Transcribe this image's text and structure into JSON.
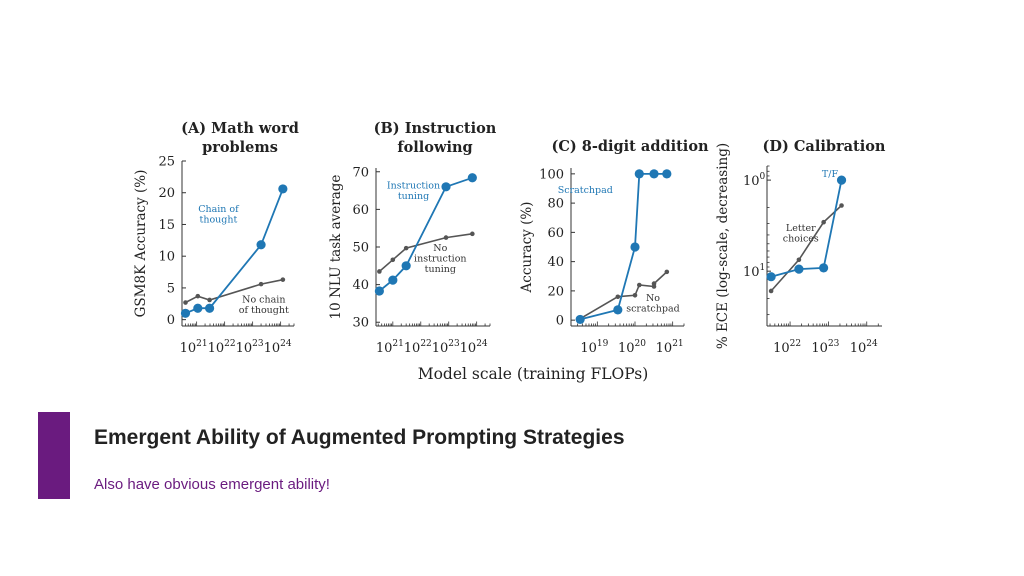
{
  "slide": {
    "title": "Emergent Ability of Augmented Prompting Strategies",
    "subtitle": "Also have obvious emergent ability!",
    "accent_color": "#6a1b7f"
  },
  "shared_xlabel": "Model scale (training FLOPs)",
  "chart_data": [
    {
      "type": "line",
      "title_lines": [
        "(A) Math word",
        "problems"
      ],
      "ylabel": "GSM8K Accuracy (%)",
      "x_scale": "log",
      "xlim": [
        3e+20,
        3e+24
      ],
      "xticks": [
        {
          "v": 1e+21,
          "base": "10",
          "exp": "21"
        },
        {
          "v": 1e+22,
          "base": "10",
          "exp": "22"
        },
        {
          "v": 1e+23,
          "base": "10",
          "exp": "23"
        },
        {
          "v": 1e+24,
          "base": "10",
          "exp": "24"
        }
      ],
      "ylim": [
        -1,
        25
      ],
      "yticks": [
        {
          "v": 0,
          "label": "0"
        },
        {
          "v": 5,
          "label": "5"
        },
        {
          "v": 10,
          "label": "10"
        },
        {
          "v": 15,
          "label": "15"
        },
        {
          "v": 20,
          "label": "20"
        },
        {
          "v": 25,
          "label": "25"
        }
      ],
      "series": [
        {
          "name": "Chain of thought",
          "label_lines": [
            "Chain of",
            "thought"
          ],
          "label_at": [
            6e+21,
            17
          ],
          "color": "#1f77b4",
          "marker": "large",
          "points": [
            [
              4e+20,
              1
            ],
            [
              1.1e+21,
              1.8
            ],
            [
              2.9e+21,
              1.8
            ],
            [
              2e+23,
              11.8
            ],
            [
              1.2e+24,
              20.6
            ]
          ]
        },
        {
          "name": "No chain of thought",
          "label_lines": [
            "No chain",
            "of thought"
          ],
          "label_at": [
            2.5e+23,
            2.7
          ],
          "color": "#555555",
          "marker": "small",
          "points": [
            [
              4e+20,
              2.7
            ],
            [
              1.1e+21,
              3.7
            ],
            [
              2.9e+21,
              3.1
            ],
            [
              2e+23,
              5.6
            ],
            [
              1.2e+24,
              6.3
            ]
          ]
        }
      ]
    },
    {
      "type": "line",
      "title_lines": [
        "(B) Instruction",
        "following"
      ],
      "ylabel": "10 NLU task average",
      "x_scale": "log",
      "xlim": [
        2.5e+20,
        3e+24
      ],
      "xticks": [
        {
          "v": 1e+21,
          "base": "10",
          "exp": "21"
        },
        {
          "v": 1e+22,
          "base": "10",
          "exp": "22"
        },
        {
          "v": 1e+23,
          "base": "10",
          "exp": "23"
        },
        {
          "v": 1e+24,
          "base": "10",
          "exp": "24"
        }
      ],
      "ylim": [
        29,
        71
      ],
      "yticks": [
        {
          "v": 30,
          "label": "30"
        },
        {
          "v": 40,
          "label": "40"
        },
        {
          "v": 50,
          "label": "50"
        },
        {
          "v": 60,
          "label": "60"
        },
        {
          "v": 70,
          "label": "70"
        }
      ],
      "series": [
        {
          "name": "Instruction tuning",
          "label_lines": [
            "Instruction",
            "tuning"
          ],
          "label_at": [
            5.5e+21,
            65.5
          ],
          "color": "#1f77b4",
          "marker": "large",
          "points": [
            [
              3.3e+20,
              38.3
            ],
            [
              1e+21,
              41.2
            ],
            [
              3e+21,
              45
            ],
            [
              8e+22,
              66
            ],
            [
              7e+23,
              68.4
            ]
          ]
        },
        {
          "name": "No instruction tuning",
          "label_lines": [
            "No",
            "instruction",
            "tuning"
          ],
          "label_at": [
            5e+22,
            49
          ],
          "color": "#555555",
          "marker": "small",
          "points": [
            [
              3.3e+20,
              43.5
            ],
            [
              1e+21,
              46.6
            ],
            [
              3e+21,
              49.7
            ],
            [
              8e+22,
              52.5
            ],
            [
              7e+23,
              53.5
            ]
          ]
        }
      ]
    },
    {
      "type": "line",
      "title_lines": [
        "(C) 8-digit addition"
      ],
      "ylabel": "Accuracy (%)",
      "x_scale": "log",
      "xlim": [
        2e+18,
        2e+21
      ],
      "xticks": [
        {
          "v": 1e+19,
          "base": "10",
          "exp": "19"
        },
        {
          "v": 1e+20,
          "base": "10",
          "exp": "20"
        },
        {
          "v": 1e+21,
          "base": "10",
          "exp": "21"
        }
      ],
      "ylim": [
        -4,
        104
      ],
      "yticks": [
        {
          "v": 0,
          "label": "0"
        },
        {
          "v": 20,
          "label": "20"
        },
        {
          "v": 40,
          "label": "40"
        },
        {
          "v": 60,
          "label": "60"
        },
        {
          "v": 80,
          "label": "80"
        },
        {
          "v": 100,
          "label": "100"
        }
      ],
      "series": [
        {
          "name": "Scratchpad",
          "label_lines": [
            "Scratchpad"
          ],
          "label_at": [
            4.8e+18,
            87
          ],
          "color": "#1f77b4",
          "marker": "large",
          "points": [
            [
              3.5e+18,
              0.5
            ],
            [
              3.5e+19,
              7
            ],
            [
              1e+20,
              50
            ],
            [
              1.3e+20,
              100
            ],
            [
              3.2e+20,
              100
            ],
            [
              7e+20,
              100
            ]
          ]
        },
        {
          "name": "No scratchpad",
          "label_lines": [
            "No",
            "scratchpad"
          ],
          "label_at": [
            3e+20,
            13
          ],
          "color": "#555555",
          "marker": "small",
          "points": [
            [
              3.5e+18,
              1
            ],
            [
              3.5e+19,
              16
            ],
            [
              1e+20,
              17
            ],
            [
              1.3e+20,
              24
            ],
            [
              3.2e+20,
              23
            ],
            [
              3.2e+20,
              25
            ],
            [
              7e+20,
              33
            ]
          ]
        }
      ]
    },
    {
      "type": "line",
      "title_lines": [
        "(D) Calibration"
      ],
      "ylabel": "% ECE (log-scale, decreasing)",
      "x_scale": "log",
      "y_scale": "log",
      "y_reversed": true,
      "xlim": [
        2.5e+21,
        2.5e+24
      ],
      "xticks": [
        {
          "v": 1e+22,
          "base": "10",
          "exp": "22"
        },
        {
          "v": 1e+23,
          "base": "10",
          "exp": "23"
        },
        {
          "v": 1e+24,
          "base": "10",
          "exp": "24"
        }
      ],
      "ylim": [
        0.7,
        40
      ],
      "yticks": [
        {
          "v": 1,
          "base": "10",
          "exp": "0"
        },
        {
          "v": 10,
          "base": "10",
          "exp": "1"
        }
      ],
      "series": [
        {
          "name": "T/F",
          "label_lines": [
            "T/F"
          ],
          "label_at": [
            1.1e+23,
            0.92
          ],
          "color": "#1f77b4",
          "marker": "large",
          "points": [
            [
              3.2e+21,
              11.5
            ],
            [
              1.7e+22,
              9.5
            ],
            [
              7.5e+22,
              9.2
            ],
            [
              2.2e+23,
              1
            ]
          ]
        },
        {
          "name": "Letter choices",
          "label_lines": [
            "Letter",
            "choices"
          ],
          "label_at": [
            1.9e+22,
            3.6
          ],
          "color": "#555555",
          "marker": "small",
          "points": [
            [
              3.2e+21,
              16.5
            ],
            [
              1.7e+22,
              7.5
            ],
            [
              7.5e+22,
              2.9
            ],
            [
              2.2e+23,
              1.9
            ]
          ]
        }
      ]
    }
  ]
}
